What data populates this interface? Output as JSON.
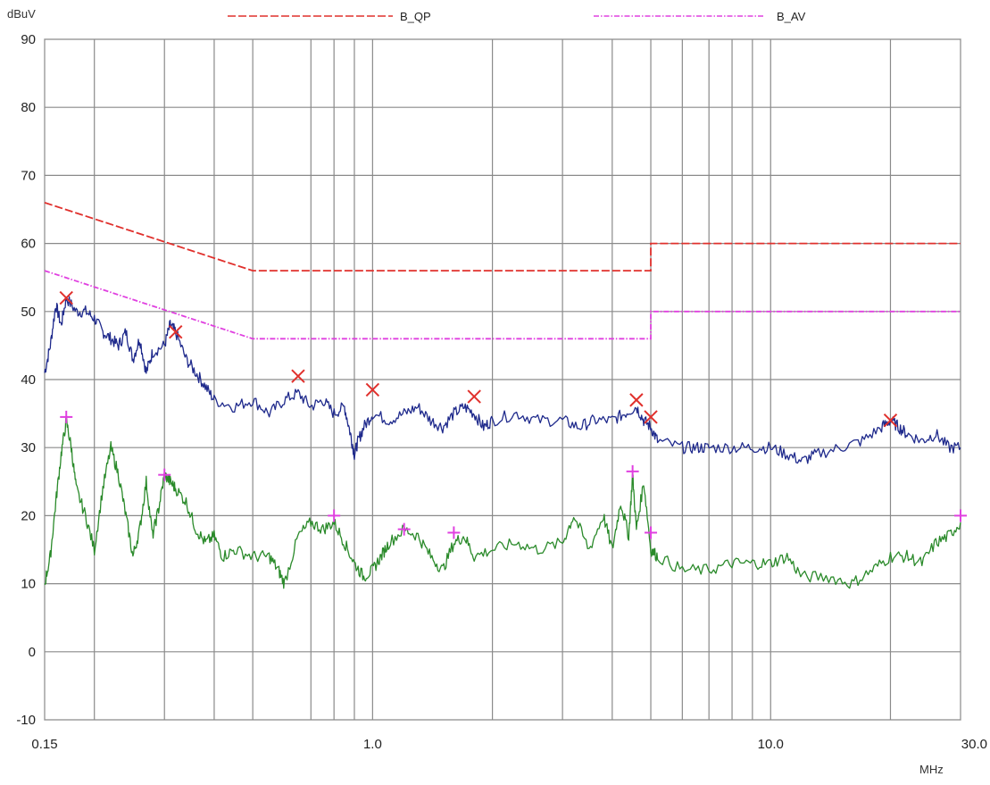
{
  "chart_data": {
    "type": "line",
    "ylabel": "dBuV",
    "xlabel": "MHz",
    "x_scale": "log",
    "xlim": [
      0.15,
      30.0
    ],
    "ylim": [
      -10,
      90
    ],
    "y_ticks": [
      -10,
      0,
      10,
      20,
      30,
      40,
      50,
      60,
      70,
      80,
      90
    ],
    "x_tick_labels": [
      {
        "value": 0.15,
        "label": "0.15"
      },
      {
        "value": 1.0,
        "label": "1.0"
      },
      {
        "value": 10.0,
        "label": "10.0"
      },
      {
        "value": 30.0,
        "label": "30.0"
      }
    ],
    "x_gridlines": [
      0.15,
      0.2,
      0.3,
      0.4,
      0.5,
      0.7,
      0.8,
      0.9,
      1,
      2,
      3,
      4,
      5,
      6,
      7,
      8,
      9,
      10,
      20,
      30
    ],
    "grid": true,
    "legend": [
      {
        "name": "B_QP",
        "color": "#e0302c",
        "dash": "dashed"
      },
      {
        "name": "B_AV",
        "color": "#e040e0",
        "dash": "dash-dot"
      }
    ],
    "limits": [
      {
        "name": "B_QP",
        "color": "#e0302c",
        "points": [
          [
            0.15,
            66
          ],
          [
            0.5,
            56
          ],
          [
            5.0,
            56
          ],
          [
            5.0,
            60
          ],
          [
            30.0,
            60
          ]
        ]
      },
      {
        "name": "B_AV",
        "color": "#e040e0",
        "points": [
          [
            0.15,
            56
          ],
          [
            0.5,
            46
          ],
          [
            5.0,
            46
          ],
          [
            5.0,
            50
          ],
          [
            30.0,
            50
          ]
        ]
      }
    ],
    "traces": [
      {
        "id": "qp-trace",
        "color": "#1f2a8c",
        "points": [
          [
            0.15,
            41
          ],
          [
            0.155,
            45
          ],
          [
            0.16,
            51
          ],
          [
            0.165,
            48
          ],
          [
            0.17,
            52
          ],
          [
            0.18,
            50
          ],
          [
            0.19,
            50
          ],
          [
            0.2,
            49
          ],
          [
            0.21,
            47
          ],
          [
            0.22,
            46
          ],
          [
            0.23,
            45
          ],
          [
            0.24,
            47
          ],
          [
            0.25,
            43
          ],
          [
            0.26,
            46
          ],
          [
            0.27,
            41
          ],
          [
            0.28,
            44
          ],
          [
            0.3,
            45
          ],
          [
            0.31,
            48
          ],
          [
            0.32,
            47
          ],
          [
            0.34,
            43
          ],
          [
            0.36,
            41
          ],
          [
            0.38,
            39
          ],
          [
            0.4,
            37
          ],
          [
            0.45,
            36
          ],
          [
            0.5,
            37
          ],
          [
            0.55,
            35
          ],
          [
            0.6,
            37
          ],
          [
            0.65,
            38
          ],
          [
            0.7,
            36
          ],
          [
            0.75,
            37
          ],
          [
            0.8,
            35
          ],
          [
            0.85,
            36
          ],
          [
            0.88,
            32
          ],
          [
            0.9,
            29
          ],
          [
            0.92,
            31
          ],
          [
            0.95,
            33
          ],
          [
            1.0,
            35
          ],
          [
            1.1,
            34
          ],
          [
            1.2,
            35
          ],
          [
            1.3,
            36
          ],
          [
            1.4,
            34
          ],
          [
            1.5,
            33
          ],
          [
            1.6,
            35
          ],
          [
            1.7,
            36
          ],
          [
            1.8,
            35
          ],
          [
            1.9,
            33
          ],
          [
            2.0,
            34
          ],
          [
            2.3,
            35
          ],
          [
            2.6,
            34
          ],
          [
            3.0,
            34
          ],
          [
            3.3,
            33
          ],
          [
            3.6,
            34
          ],
          [
            4.0,
            34
          ],
          [
            4.3,
            35
          ],
          [
            4.6,
            36
          ],
          [
            4.8,
            34
          ],
          [
            5.0,
            33
          ],
          [
            5.2,
            31
          ],
          [
            6.0,
            30
          ],
          [
            6.5,
            30
          ],
          [
            7.0,
            30
          ],
          [
            8.0,
            30
          ],
          [
            9.0,
            30
          ],
          [
            10.0,
            30
          ],
          [
            11.0,
            29
          ],
          [
            12.0,
            28
          ],
          [
            13.0,
            29
          ],
          [
            15.0,
            30
          ],
          [
            17.0,
            31
          ],
          [
            19.0,
            33
          ],
          [
            20.0,
            34
          ],
          [
            21.0,
            33
          ],
          [
            22.0,
            32
          ],
          [
            24.0,
            31
          ],
          [
            26.0,
            32
          ],
          [
            28.0,
            30
          ],
          [
            30.0,
            30
          ]
        ]
      },
      {
        "id": "av-trace",
        "color": "#2a8a2a",
        "points": [
          [
            0.15,
            10
          ],
          [
            0.155,
            14
          ],
          [
            0.16,
            22
          ],
          [
            0.165,
            29
          ],
          [
            0.17,
            34
          ],
          [
            0.175,
            30
          ],
          [
            0.18,
            24
          ],
          [
            0.19,
            20
          ],
          [
            0.2,
            15
          ],
          [
            0.21,
            24
          ],
          [
            0.22,
            30
          ],
          [
            0.23,
            26
          ],
          [
            0.24,
            20
          ],
          [
            0.25,
            14
          ],
          [
            0.26,
            18
          ],
          [
            0.27,
            25
          ],
          [
            0.28,
            17
          ],
          [
            0.29,
            21
          ],
          [
            0.3,
            26
          ],
          [
            0.31,
            25
          ],
          [
            0.32,
            24
          ],
          [
            0.34,
            22
          ],
          [
            0.36,
            18
          ],
          [
            0.38,
            16
          ],
          [
            0.4,
            17
          ],
          [
            0.42,
            14
          ],
          [
            0.45,
            15
          ],
          [
            0.5,
            14
          ],
          [
            0.55,
            14
          ],
          [
            0.58,
            12
          ],
          [
            0.6,
            10
          ],
          [
            0.65,
            17
          ],
          [
            0.7,
            19
          ],
          [
            0.75,
            18
          ],
          [
            0.8,
            19
          ],
          [
            0.85,
            16
          ],
          [
            0.9,
            13
          ],
          [
            0.95,
            11
          ],
          [
            1.0,
            12
          ],
          [
            1.05,
            14
          ],
          [
            1.1,
            16
          ],
          [
            1.2,
            18
          ],
          [
            1.3,
            17
          ],
          [
            1.4,
            14
          ],
          [
            1.5,
            12
          ],
          [
            1.6,
            16
          ],
          [
            1.7,
            17
          ],
          [
            1.8,
            14
          ],
          [
            2.0,
            15
          ],
          [
            2.3,
            16
          ],
          [
            2.6,
            15
          ],
          [
            3.0,
            16
          ],
          [
            3.2,
            20
          ],
          [
            3.5,
            15
          ],
          [
            3.8,
            20
          ],
          [
            4.0,
            15
          ],
          [
            4.2,
            22
          ],
          [
            4.4,
            17
          ],
          [
            4.5,
            26
          ],
          [
            4.6,
            18
          ],
          [
            4.8,
            25
          ],
          [
            5.0,
            15
          ],
          [
            5.2,
            14
          ],
          [
            6.0,
            12
          ],
          [
            7.0,
            12
          ],
          [
            8.0,
            13
          ],
          [
            9.0,
            13
          ],
          [
            10.0,
            13
          ],
          [
            11.0,
            14
          ],
          [
            12.0,
            11
          ],
          [
            14.0,
            11
          ],
          [
            16.0,
            10
          ],
          [
            18.0,
            12
          ],
          [
            20.0,
            14
          ],
          [
            22.0,
            14
          ],
          [
            24.0,
            13
          ],
          [
            26.0,
            16
          ],
          [
            28.0,
            17
          ],
          [
            30.0,
            19
          ]
        ]
      }
    ],
    "markers": [
      {
        "series": "qp-peaks",
        "symbol": "x",
        "color": "#e0302c",
        "points": [
          [
            0.17,
            52
          ],
          [
            0.32,
            47
          ],
          [
            0.65,
            40.5
          ],
          [
            1.0,
            38.5
          ],
          [
            1.8,
            37.5
          ],
          [
            4.6,
            37
          ],
          [
            5.0,
            34.5
          ],
          [
            20.0,
            34
          ]
        ]
      },
      {
        "series": "av-peaks",
        "symbol": "+",
        "color": "#e040e0",
        "points": [
          [
            0.17,
            34.5
          ],
          [
            0.3,
            26
          ],
          [
            0.8,
            20
          ],
          [
            1.2,
            18
          ],
          [
            1.6,
            17.5
          ],
          [
            4.5,
            26.5
          ],
          [
            5.0,
            17.5
          ],
          [
            30.0,
            20
          ]
        ]
      }
    ]
  }
}
